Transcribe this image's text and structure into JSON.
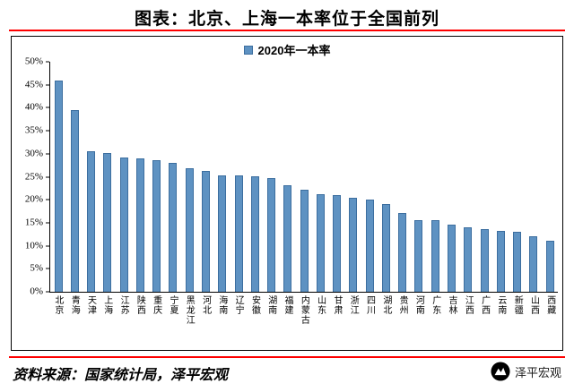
{
  "page": {
    "title": "图表：北京、上海一本率位于全国前列",
    "accent_color": "#fe0000",
    "footer": {
      "source": "资料来源：国家统计局，泽平宏观",
      "brand_name": "泽平宏观"
    }
  },
  "chart_data": {
    "type": "bar",
    "title": "图表：北京、上海一本率位于全国前列",
    "legend": "2020年一本率",
    "legend_position": "top-center",
    "grid": "off",
    "categories": [
      "北京",
      "青海",
      "天津",
      "上海",
      "江苏",
      "陕西",
      "重庆",
      "宁夏",
      "黑龙江",
      "河北",
      "海南",
      "辽宁",
      "安徽",
      "湖南",
      "福建",
      "内蒙古",
      "山东",
      "甘肃",
      "浙江",
      "四川",
      "湖北",
      "贵州",
      "河南",
      "广东",
      "吉林",
      "江西",
      "广西",
      "云南",
      "新疆",
      "山西",
      "西藏"
    ],
    "values": [
      46.0,
      39.5,
      30.5,
      30.2,
      29.2,
      29.0,
      28.6,
      28.0,
      26.8,
      26.2,
      25.3,
      25.2,
      25.1,
      24.8,
      23.2,
      22.2,
      21.2,
      21.1,
      20.5,
      20.1,
      19.0,
      17.2,
      15.6,
      15.5,
      14.6,
      14.1,
      13.6,
      13.2,
      13.0,
      12.0,
      11.0
    ],
    "xlabel": "",
    "ylabel": "",
    "ylim": [
      0,
      50
    ],
    "ytick_step": 5,
    "ytick_labels": [
      "0%",
      "5%",
      "10%",
      "15%",
      "20%",
      "25%",
      "30%",
      "35%",
      "40%",
      "45%",
      "50%"
    ],
    "bar_color": "#5e92c2",
    "bar_border_color": "#3c6e9f"
  }
}
